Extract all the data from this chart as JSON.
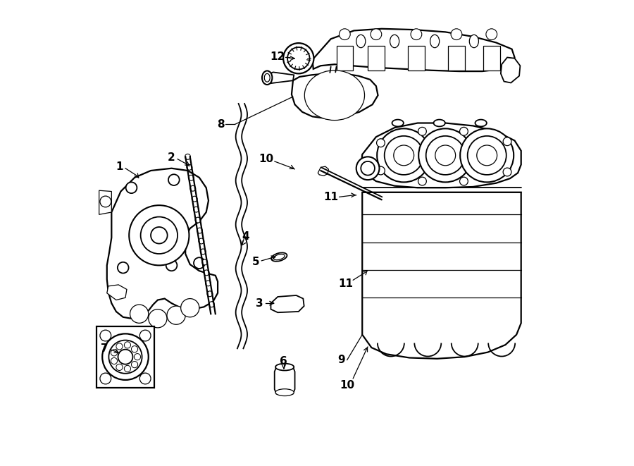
{
  "background_color": "#ffffff",
  "fig_width": 9.0,
  "fig_height": 6.61,
  "dpi": 100,
  "line_color": "#000000",
  "line_width": 1.3,
  "label_fontsize": 11
}
